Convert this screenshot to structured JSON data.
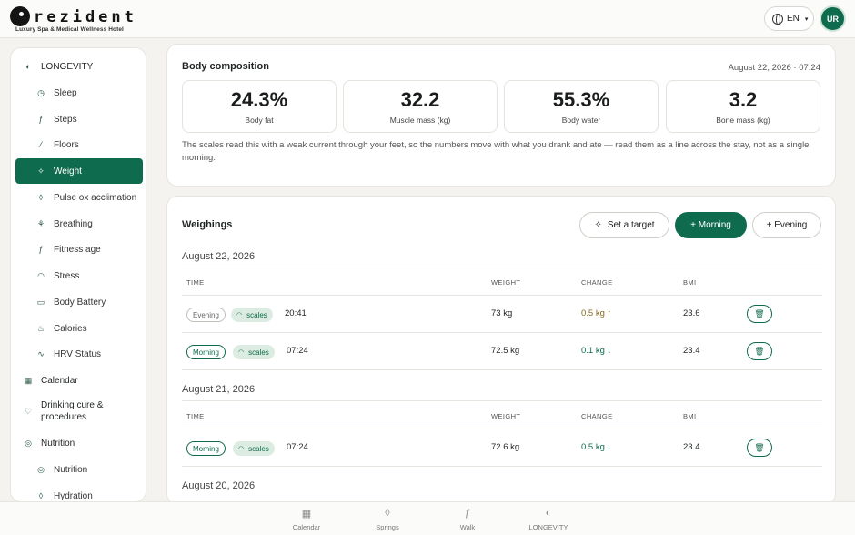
{
  "brand": {
    "name": "rezident",
    "tagline": "Luxury Spa & Medical Wellness Hotel"
  },
  "header": {
    "language": "EN",
    "avatar_initials": "UR"
  },
  "sidebar": {
    "items": [
      {
        "label": "LONGEVITY",
        "icon": "longevity-icon"
      },
      {
        "label": "Sleep",
        "icon": "clock-icon"
      },
      {
        "label": "Steps",
        "icon": "walking-icon"
      },
      {
        "label": "Floors",
        "icon": "stairs-icon"
      },
      {
        "label": "Weight",
        "icon": "sparkle-icon"
      },
      {
        "label": "Pulse ox acclimation",
        "icon": "droplet-icon"
      },
      {
        "label": "Breathing",
        "icon": "lungs-icon"
      },
      {
        "label": "Fitness age",
        "icon": "runner-icon"
      },
      {
        "label": "Stress",
        "icon": "gauge-icon"
      },
      {
        "label": "Body Battery",
        "icon": "battery-icon"
      },
      {
        "label": "Calories",
        "icon": "flame-icon"
      },
      {
        "label": "HRV Status",
        "icon": "pulse-icon"
      },
      {
        "label": "Calendar",
        "icon": "calendar-icon"
      },
      {
        "label": "Drinking cure & procedures",
        "icon": "heart-icon"
      },
      {
        "label": "Nutrition",
        "icon": "target-icon"
      },
      {
        "label": "Nutrition",
        "icon": "target-icon"
      },
      {
        "label": "Hydration",
        "icon": "droplet-icon"
      }
    ]
  },
  "composition": {
    "title": "Body composition",
    "timestamp": "August 22, 2026 · 07:24",
    "metrics": [
      {
        "value": "24.3%",
        "label": "Body fat"
      },
      {
        "value": "32.2",
        "label": "Muscle mass (kg)"
      },
      {
        "value": "55.3%",
        "label": "Body water"
      },
      {
        "value": "3.2",
        "label": "Bone mass (kg)"
      }
    ],
    "note": "The scales read this with a weak current through your feet, so the numbers move with what you drank and ate — read them as a line across the stay, not as a single morning."
  },
  "weighings": {
    "title": "Weighings",
    "buttons": {
      "target": "Set a target",
      "morning": "+ Morning",
      "evening": "+ Evening"
    },
    "columns": {
      "time": "TIME",
      "weight": "WEIGHT",
      "change": "CHANGE",
      "bmi": "BMI"
    },
    "days": [
      {
        "date": "August 22, 2026",
        "rows": [
          {
            "slot": "Evening",
            "source": "scales",
            "time": "20:41",
            "weight": "73 kg",
            "change": "0.5 kg ↑",
            "bmi": "23.6"
          },
          {
            "slot": "Morning",
            "source": "scales",
            "time": "07:24",
            "weight": "72.5 kg",
            "change": "0.1 kg ↓",
            "bmi": "23.4"
          }
        ]
      },
      {
        "date": "August 21, 2026",
        "rows": [
          {
            "slot": "Morning",
            "source": "scales",
            "time": "07:24",
            "weight": "72.6 kg",
            "change": "0.5 kg ↓",
            "bmi": "23.4"
          }
        ]
      },
      {
        "date": "August 20, 2026",
        "rows": []
      }
    ]
  },
  "bottom_nav": {
    "items": [
      {
        "label": "Calendar",
        "icon": "calendar-icon"
      },
      {
        "label": "Springs",
        "icon": "droplet-icon"
      },
      {
        "label": "Walk",
        "icon": "walking-icon"
      },
      {
        "label": "LONGEVITY",
        "icon": "longevity-icon"
      }
    ]
  },
  "colors": {
    "accent": "#0f6b4d",
    "accent_soft": "#dcece3",
    "increase": "#8a6a1c"
  }
}
